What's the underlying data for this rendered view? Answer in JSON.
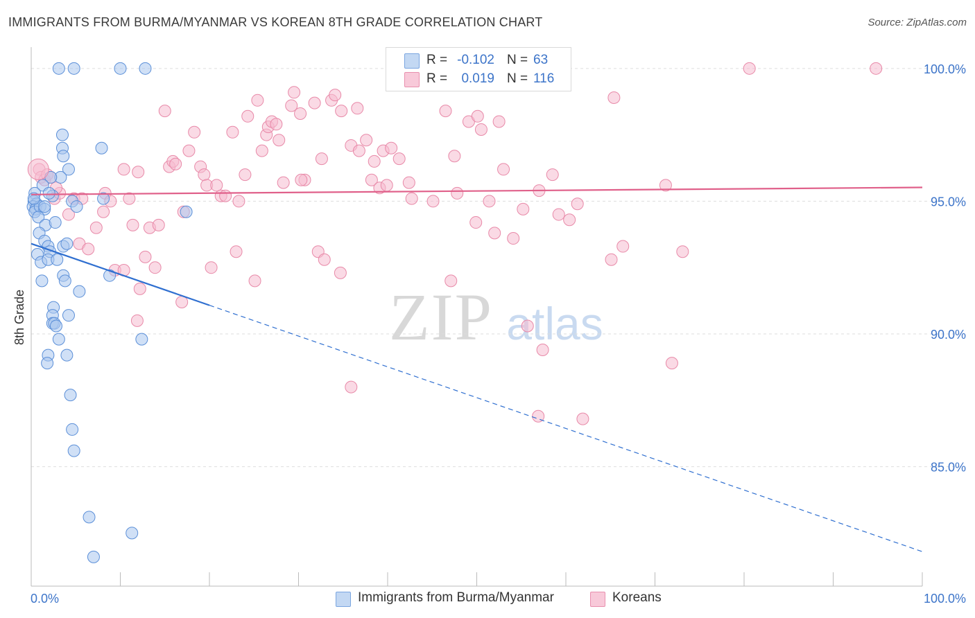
{
  "title": "IMMIGRANTS FROM BURMA/MYANMAR VS KOREAN 8TH GRADE CORRELATION CHART",
  "source": "Source: ZipAtlas.com",
  "watermark": {
    "zip": "ZIP",
    "atlas": "atlas"
  },
  "colors": {
    "blue_fill": "#a9c7ee",
    "blue_stroke": "#5b8fd8",
    "blue_line": "#2f6fd0",
    "pink_fill": "#f6bcd0",
    "pink_stroke": "#e889a8",
    "pink_line": "#e0608a",
    "axis_text": "#3c74c9",
    "grid": "#dddddd"
  },
  "legend": {
    "rows": [
      {
        "r_label": "R =",
        "r_value": "-0.102",
        "n_label": "N =",
        "n_value": "63"
      },
      {
        "r_label": "R =",
        "r_value": "0.019",
        "n_label": "N =",
        "n_value": "116"
      }
    ]
  },
  "bottom_legend": {
    "blue_label": "Immigrants from Burma/Myanmar",
    "pink_label": "Koreans"
  },
  "chart_data": {
    "type": "scatter",
    "title": "IMMIGRANTS FROM BURMA/MYANMAR VS KOREAN 8TH GRADE CORRELATION CHART",
    "xlabel": "",
    "ylabel": "8th Grade",
    "xlim": [
      0,
      100
    ],
    "ylim": [
      80.5,
      100.7
    ],
    "x_tick_labels": [
      "0.0%",
      "100.0%"
    ],
    "y_ticks": [
      85,
      90,
      95,
      100
    ],
    "y_tick_labels": [
      "85.0%",
      "90.0%",
      "95.0%",
      "100.0%"
    ],
    "series": [
      {
        "name": "Immigrants from Burma/Myanmar",
        "r": -0.102,
        "n": 63,
        "trend": {
          "x": [
            0,
            100
          ],
          "y": [
            93.4,
            81.8
          ],
          "solid_until_x": 20
        },
        "points": [
          [
            3.1,
            100
          ],
          [
            4.8,
            100
          ],
          [
            10,
            100
          ],
          [
            12.8,
            100
          ],
          [
            3.5,
            97.5
          ],
          [
            3.5,
            97.0
          ],
          [
            3.6,
            96.7
          ],
          [
            7.9,
            97.0
          ],
          [
            4.2,
            96.2
          ],
          [
            3.3,
            95.9
          ],
          [
            2.2,
            95.9
          ],
          [
            1.3,
            95.6
          ],
          [
            0.4,
            95.3
          ],
          [
            0.3,
            95.0
          ],
          [
            0.6,
            94.9
          ],
          [
            0.2,
            94.8
          ],
          [
            0.5,
            94.7
          ],
          [
            0.4,
            94.6
          ],
          [
            1.0,
            94.8
          ],
          [
            1.5,
            94.7
          ],
          [
            2.4,
            95.2
          ],
          [
            4.6,
            95.0
          ],
          [
            5.1,
            94.8
          ],
          [
            8.1,
            95.1
          ],
          [
            17.4,
            94.6
          ],
          [
            0.8,
            94.4
          ],
          [
            1.6,
            94.1
          ],
          [
            2.7,
            94.2
          ],
          [
            0.9,
            93.8
          ],
          [
            1.5,
            93.5
          ],
          [
            1.9,
            93.3
          ],
          [
            2.1,
            93.1
          ],
          [
            3.6,
            93.3
          ],
          [
            4.0,
            93.4
          ],
          [
            0.7,
            93.0
          ],
          [
            1.1,
            92.7
          ],
          [
            1.9,
            92.8
          ],
          [
            2.9,
            92.8
          ],
          [
            3.6,
            92.2
          ],
          [
            1.2,
            92.0
          ],
          [
            3.8,
            92.0
          ],
          [
            8.8,
            92.2
          ],
          [
            5.4,
            91.6
          ],
          [
            2.5,
            91.0
          ],
          [
            4.2,
            90.7
          ],
          [
            2.4,
            90.7
          ],
          [
            2.4,
            90.4
          ],
          [
            2.6,
            90.4
          ],
          [
            2.8,
            90.3
          ],
          [
            3.1,
            89.8
          ],
          [
            12.4,
            89.8
          ],
          [
            1.9,
            89.2
          ],
          [
            1.8,
            88.9
          ],
          [
            4.0,
            89.2
          ],
          [
            4.4,
            87.7
          ],
          [
            4.6,
            86.4
          ],
          [
            4.8,
            85.6
          ],
          [
            6.5,
            83.1
          ],
          [
            11.3,
            82.5
          ],
          [
            7.0,
            81.6
          ],
          [
            1.5,
            94.8
          ],
          [
            2.0,
            95.3
          ],
          [
            0.3,
            95.1
          ]
        ]
      },
      {
        "name": "Koreans",
        "r": 0.019,
        "n": 116,
        "trend": {
          "x": [
            0,
            100
          ],
          "y": [
            95.25,
            95.52
          ]
        },
        "points": [
          [
            0.9,
            96.2
          ],
          [
            1.1,
            95.9
          ],
          [
            1.5,
            95.8
          ],
          [
            1.8,
            96.0
          ],
          [
            2.2,
            95.9
          ],
          [
            2.6,
            95.1
          ],
          [
            3.2,
            95.3
          ],
          [
            4.2,
            94.5
          ],
          [
            4.8,
            95.1
          ],
          [
            5.4,
            93.4
          ],
          [
            5.7,
            95.1
          ],
          [
            6.4,
            93.2
          ],
          [
            7.3,
            94.0
          ],
          [
            8.1,
            94.6
          ],
          [
            8.3,
            95.3
          ],
          [
            8.9,
            95.0
          ],
          [
            9.4,
            92.4
          ],
          [
            10.4,
            92.4
          ],
          [
            10.4,
            96.2
          ],
          [
            11.0,
            95.1
          ],
          [
            11.4,
            94.1
          ],
          [
            11.9,
            90.5
          ],
          [
            12.2,
            91.7
          ],
          [
            12.8,
            92.9
          ],
          [
            13.3,
            94.0
          ],
          [
            13.9,
            92.5
          ],
          [
            14.3,
            94.1
          ],
          [
            15.0,
            98.4
          ],
          [
            15.5,
            96.3
          ],
          [
            15.9,
            96.5
          ],
          [
            16.2,
            96.4
          ],
          [
            16.9,
            91.2
          ],
          [
            17.1,
            94.6
          ],
          [
            17.7,
            96.9
          ],
          [
            18.3,
            97.6
          ],
          [
            19.0,
            96.3
          ],
          [
            19.4,
            96.0
          ],
          [
            19.7,
            95.6
          ],
          [
            20.2,
            92.5
          ],
          [
            20.8,
            95.6
          ],
          [
            21.3,
            95.2
          ],
          [
            21.8,
            95.2
          ],
          [
            22.6,
            97.6
          ],
          [
            23.0,
            93.1
          ],
          [
            23.3,
            95.0
          ],
          [
            24.0,
            96.0
          ],
          [
            24.3,
            98.2
          ],
          [
            25.1,
            92.0
          ],
          [
            25.4,
            98.8
          ],
          [
            25.9,
            96.9
          ],
          [
            26.4,
            97.5
          ],
          [
            26.6,
            97.8
          ],
          [
            27.0,
            98.0
          ],
          [
            27.5,
            97.9
          ],
          [
            27.8,
            97.3
          ],
          [
            28.3,
            95.7
          ],
          [
            29.2,
            98.6
          ],
          [
            29.5,
            99.1
          ],
          [
            30.2,
            98.3
          ],
          [
            30.7,
            95.8
          ],
          [
            31.8,
            98.7
          ],
          [
            32.2,
            93.1
          ],
          [
            32.6,
            96.6
          ],
          [
            32.9,
            92.8
          ],
          [
            33.7,
            98.8
          ],
          [
            34.1,
            99.0
          ],
          [
            34.8,
            98.4
          ],
          [
            34.7,
            92.3
          ],
          [
            35.9,
            97.1
          ],
          [
            36.6,
            98.5
          ],
          [
            36.8,
            96.9
          ],
          [
            37.6,
            97.3
          ],
          [
            38.2,
            95.8
          ],
          [
            38.5,
            96.5
          ],
          [
            39.1,
            95.5
          ],
          [
            39.5,
            96.9
          ],
          [
            39.9,
            95.6
          ],
          [
            40.4,
            97.0
          ],
          [
            41.3,
            96.6
          ],
          [
            42.4,
            95.7
          ],
          [
            42.7,
            95.1
          ],
          [
            45.1,
            95.0
          ],
          [
            46.5,
            98.4
          ],
          [
            47.1,
            92.0
          ],
          [
            47.5,
            96.7
          ],
          [
            47.8,
            95.3
          ],
          [
            49.1,
            98.0
          ],
          [
            49.9,
            94.2
          ],
          [
            50.1,
            98.2
          ],
          [
            50.5,
            97.7
          ],
          [
            51.4,
            95.0
          ],
          [
            52.0,
            93.8
          ],
          [
            52.5,
            98.0
          ],
          [
            53.0,
            96.2
          ],
          [
            54.1,
            93.6
          ],
          [
            55.2,
            94.7
          ],
          [
            55.7,
            90.3
          ],
          [
            57.0,
            95.4
          ],
          [
            58.5,
            96.0
          ],
          [
            59.2,
            94.5
          ],
          [
            60.4,
            94.3
          ],
          [
            61.3,
            94.9
          ],
          [
            61.9,
            86.8
          ],
          [
            65.1,
            92.8
          ],
          [
            65.4,
            98.9
          ],
          [
            66.4,
            93.3
          ],
          [
            71.2,
            95.6
          ],
          [
            71.9,
            88.9
          ],
          [
            73.1,
            93.1
          ],
          [
            80.6,
            100
          ],
          [
            94.8,
            100
          ],
          [
            35.9,
            88.0
          ],
          [
            56.9,
            86.9
          ],
          [
            57.4,
            89.4
          ],
          [
            2.8,
            95.5
          ],
          [
            30.3,
            95.8
          ],
          [
            12.0,
            96.1
          ]
        ]
      }
    ]
  }
}
